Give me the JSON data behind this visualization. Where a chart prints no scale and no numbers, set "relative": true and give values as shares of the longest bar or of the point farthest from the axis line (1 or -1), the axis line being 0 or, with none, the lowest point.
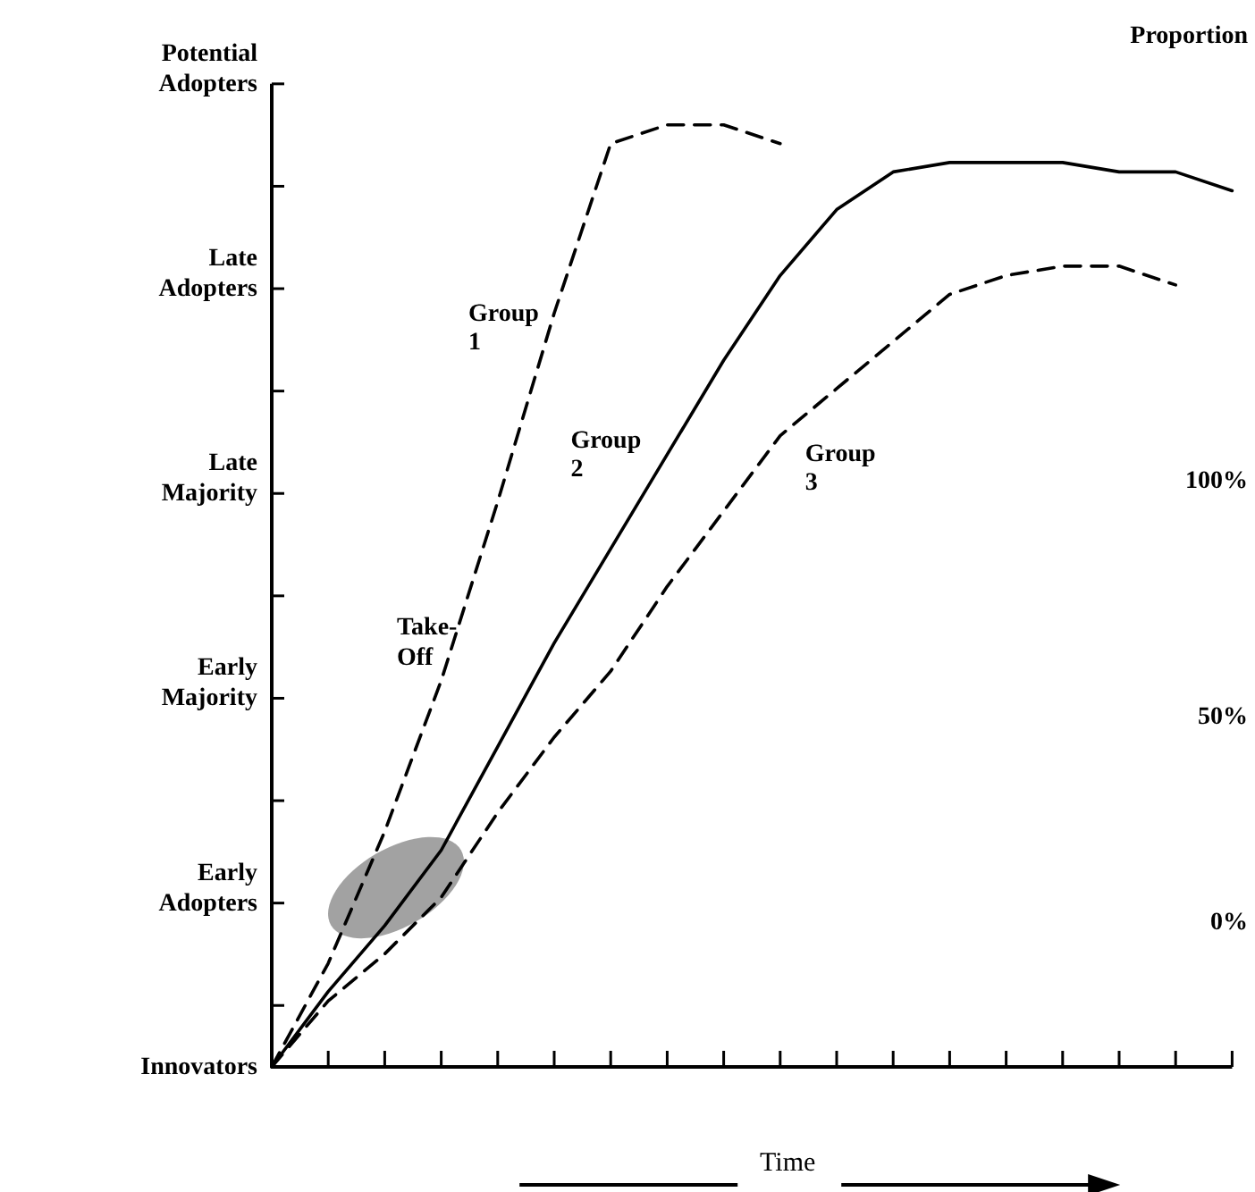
{
  "chart_data": {
    "type": "line",
    "xlabel": "Time",
    "y2label": "Proportion",
    "relative": true,
    "categories": [
      null,
      null,
      null,
      null,
      null,
      null,
      null,
      null,
      null,
      null,
      null,
      null,
      null,
      null,
      null,
      null,
      null,
      null
    ],
    "legend": false,
    "marker": "none",
    "series": [
      {
        "name": "Group 1",
        "color": "#000000",
        "line_style": "dashed",
        "values": [
          0,
          0.11,
          0.25,
          0.41,
          0.6,
          0.8,
          0.98,
          1,
          1,
          0.98,
          null,
          null,
          null,
          null,
          null,
          null,
          null,
          null
        ]
      },
      {
        "name": "Group 2",
        "color": "#000000",
        "line_style": "solid",
        "values": [
          0,
          0.08,
          0.15,
          0.23,
          0.34,
          0.45,
          0.55,
          0.65,
          0.75,
          0.84,
          0.91,
          0.95,
          0.96,
          0.96,
          0.96,
          0.95,
          0.95,
          0.93
        ]
      },
      {
        "name": "Group 3",
        "color": "#000000",
        "line_style": "dashed",
        "values": [
          0,
          0.07,
          0.12,
          0.18,
          0.27,
          0.35,
          0.42,
          0.51,
          0.59,
          0.67,
          0.72,
          0.77,
          0.82,
          0.84,
          0.85,
          0.85,
          0.83,
          null
        ]
      }
    ],
    "annotations": [
      "Innovators",
      "Early Adopters",
      "Early Majority",
      "Late Majority",
      "Late Adopters",
      "Potential Adopters",
      "Take-Off",
      "100%",
      "50%",
      "0%"
    ]
  }
}
